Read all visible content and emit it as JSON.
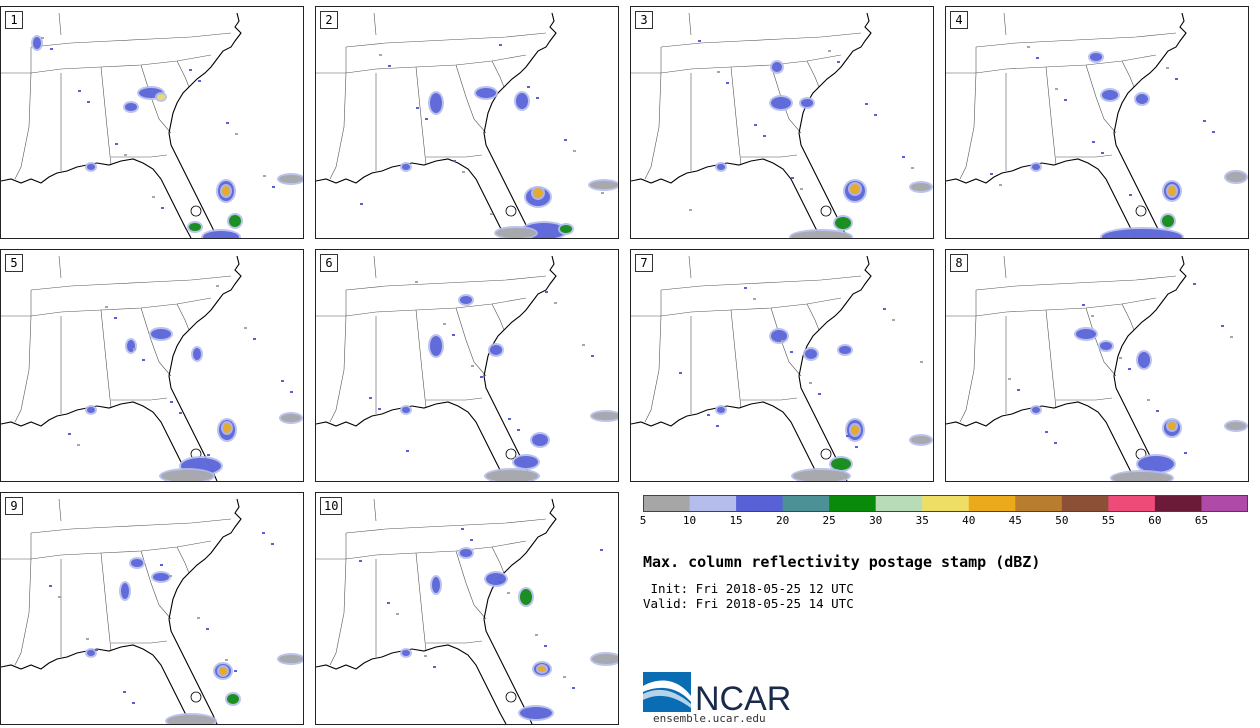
{
  "panels": [
    {
      "label": "1"
    },
    {
      "label": "2"
    },
    {
      "label": "3"
    },
    {
      "label": "4"
    },
    {
      "label": "5"
    },
    {
      "label": "6"
    },
    {
      "label": "7"
    },
    {
      "label": "8"
    },
    {
      "label": "9"
    },
    {
      "label": "10"
    }
  ],
  "colorbar": {
    "ticks": [
      "5",
      "10",
      "15",
      "20",
      "25",
      "30",
      "35",
      "40",
      "45",
      "50",
      "55",
      "60",
      "65"
    ],
    "colors": [
      "#a6a6a6",
      "#b4bdec",
      "#5862d6",
      "#4b9196",
      "#0a8a0a",
      "#b9dcb8",
      "#eede66",
      "#eba91c",
      "#b87d2f",
      "#8b5036",
      "#ee4b79",
      "#6b1a38",
      "#b04aa8"
    ]
  },
  "title": "Max. column reflectivity postage stamp (dBZ)",
  "init": " Init: Fri 2018-05-25 12 UTC",
  "valid": "Valid: Fri 2018-05-25 14 UTC",
  "logo": {
    "text": "NCAR",
    "url": "ensemble.ucar.edu"
  }
}
